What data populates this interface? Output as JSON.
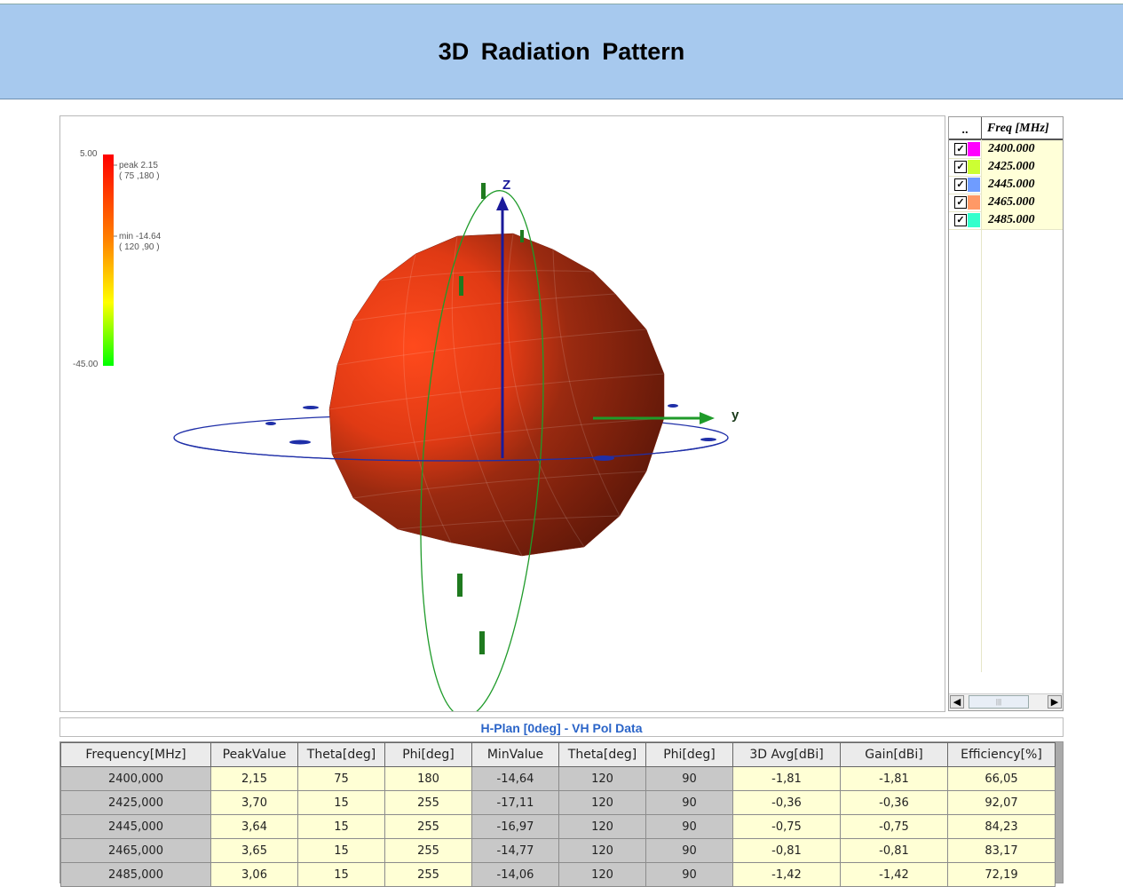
{
  "page": {
    "title": "3D Radiation Pattern"
  },
  "colorbar": {
    "max_label": "5.00",
    "min_label": "-45.00",
    "peak_text": "peak 2.15\n( 75 ,180 )",
    "min_text": "min -14.64\n( 120 ,90 )",
    "colors": [
      "#ff0000",
      "#ff8000",
      "#ffff00",
      "#00ff00"
    ]
  },
  "viewport": {
    "axes": {
      "z": "Z",
      "y": "y"
    },
    "colors": {
      "lobe_light": "#ff4a1c",
      "lobe_dark": "#6a1a0a",
      "ring_h": "#1f2fa8",
      "ring_v": "#1f9b2a"
    },
    "icons": [
      "sphere-mesh",
      "axis-arrow"
    ]
  },
  "freq_panel": {
    "col_marker": "..",
    "col_header": "Freq [MHz]",
    "items": [
      {
        "checked": true,
        "color": "#ff00ff",
        "value": "2400.000"
      },
      {
        "checked": true,
        "color": "#ccff33",
        "value": "2425.000"
      },
      {
        "checked": true,
        "color": "#6f9cff",
        "value": "2445.000"
      },
      {
        "checked": true,
        "color": "#ff9966",
        "value": "2465.000"
      },
      {
        "checked": true,
        "color": "#33ffcc",
        "value": "2485.000"
      }
    ]
  },
  "table": {
    "title": "H-Plan [0deg] - VH Pol Data",
    "headers": [
      "Frequency[MHz]",
      "PeakValue",
      "Theta[deg]",
      "Phi[deg]",
      "MinValue",
      "Theta[deg]",
      "Phi[deg]",
      "3D Avg[dBi]",
      "Gain[dBi]",
      "Efficiency[%]"
    ],
    "rows": [
      [
        "2400,000",
        "2,15",
        "75",
        "180",
        "-14,64",
        "120",
        "90",
        "-1,81",
        "-1,81",
        "66,05"
      ],
      [
        "2425,000",
        "3,70",
        "15",
        "255",
        "-17,11",
        "120",
        "90",
        "-0,36",
        "-0,36",
        "92,07"
      ],
      [
        "2445,000",
        "3,64",
        "15",
        "255",
        "-16,97",
        "120",
        "90",
        "-0,75",
        "-0,75",
        "84,23"
      ],
      [
        "2465,000",
        "3,65",
        "15",
        "255",
        "-14,77",
        "120",
        "90",
        "-0,81",
        "-0,81",
        "83,17"
      ],
      [
        "2485,000",
        "3,06",
        "15",
        "255",
        "-14,06",
        "120",
        "90",
        "-1,42",
        "-1,42",
        "72,19"
      ]
    ]
  }
}
